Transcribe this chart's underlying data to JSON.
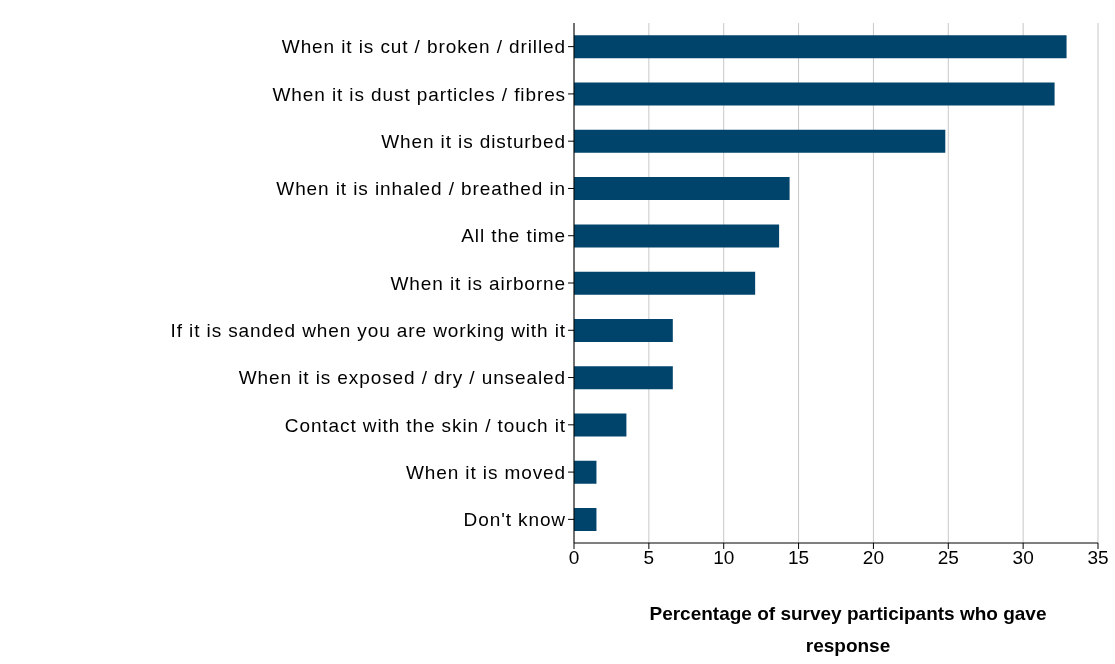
{
  "chart_data": {
    "type": "bar",
    "orientation": "horizontal",
    "xlabel": "Percentage of survey participants who gave response",
    "categories": [
      "When it is cut / broken / drilled",
      "When it is dust particles / fibres",
      "When it is disturbed",
      "When it is inhaled / breathed in",
      "All the time",
      "When it is airborne",
      "If it is sanded when you are working with it",
      "When it is exposed / dry / unsealed",
      "Contact with the skin / touch it",
      "When it is moved",
      "Don't know"
    ],
    "values": [
      32.9,
      32.1,
      24.8,
      14.4,
      13.7,
      12.1,
      6.6,
      6.6,
      3.5,
      1.5,
      1.5
    ],
    "color": "#00446b",
    "xlim": [
      0,
      35
    ],
    "xticks": [
      0,
      5,
      10,
      15,
      20,
      25,
      30,
      35
    ],
    "grid": "x"
  }
}
